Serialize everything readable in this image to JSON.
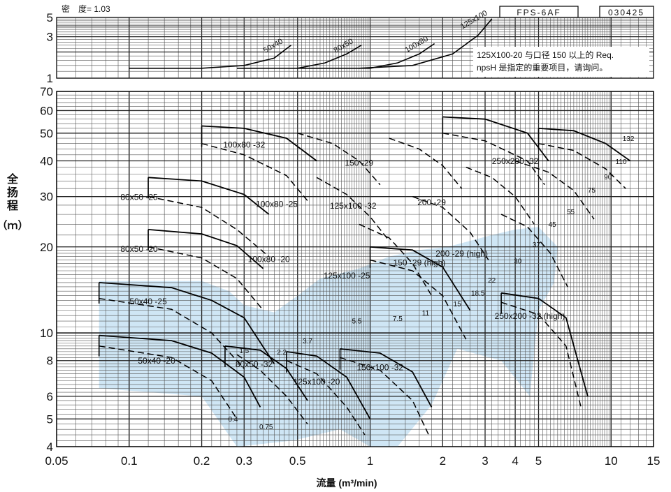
{
  "header": {
    "density_label": "密　度= 1.03",
    "model": "FPS-6AF",
    "code": "030425"
  },
  "axes": {
    "ylabel_lines": [
      "全",
      "扬",
      "程"
    ],
    "yunit": "（ｍ）",
    "xlabel": "流量 (m³/min)"
  },
  "npsh_note": {
    "lines": [
      "125X100-20 与口径 150 以上的 Req.",
      "npsH 是指定的重要项目，请询问。"
    ]
  },
  "chart_data": [
    {
      "type": "line",
      "title": "",
      "ylabel": "",
      "xscale": "log",
      "yscale": "log",
      "xlim": [
        0.05,
        15
      ],
      "ylim": [
        1,
        5
      ],
      "x_ticks": [],
      "y_ticks": [
        "1",
        "3",
        "5"
      ],
      "grid": true,
      "series": [
        {
          "name": "50x40",
          "x": [
            0.1,
            0.2,
            0.3,
            0.4,
            0.47
          ],
          "y": [
            1.3,
            1.3,
            1.4,
            1.7,
            2.4
          ]
        },
        {
          "name": "80x50",
          "x": [
            0.28,
            0.5,
            0.65,
            0.8,
            0.92
          ],
          "y": [
            1.3,
            1.3,
            1.5,
            1.9,
            2.4
          ]
        },
        {
          "name": "100x80",
          "x": [
            0.5,
            1.0,
            1.3,
            1.6,
            1.85
          ],
          "y": [
            1.3,
            1.3,
            1.5,
            1.9,
            2.5
          ]
        },
        {
          "name": "125x100",
          "x": [
            0.9,
            1.5,
            2.2,
            2.8,
            3.2
          ],
          "y": [
            1.3,
            1.4,
            1.9,
            3.1,
            4.8
          ]
        }
      ]
    },
    {
      "type": "line",
      "title": "",
      "xlabel": "流量 (m³/min)",
      "ylabel": "全扬程（ｍ）",
      "xscale": "log",
      "yscale": "log",
      "xlim": [
        0.05,
        15
      ],
      "ylim": [
        4,
        70
      ],
      "x_ticks": [
        "0.05",
        "0.1",
        "0.2",
        "0.3",
        "0.5",
        "1",
        "2",
        "3",
        "4",
        "5",
        "10",
        "15"
      ],
      "y_ticks": [
        "4",
        "5",
        "6",
        "8",
        "10",
        "20",
        "30",
        "40",
        "50",
        "60",
        "70"
      ],
      "grid": true,
      "pump_models": [
        "50x40 -20",
        "50x40 -25",
        "80x50 -20",
        "80x50 -25",
        "80x50 -32",
        "100x80 -20",
        "100x80 -25",
        "100x80 -32",
        "125x100 -20",
        "125x100 -25",
        "125x100 -32",
        "150 -29",
        "150x100 -32",
        "150 -29 (high)",
        "200 -29",
        "200 -29 (high)",
        "250x200 -32",
        "250x200 -32 (high)"
      ],
      "power_labels_kw": [
        "0.4",
        "0.75",
        "1.5",
        "2.2",
        "3.7",
        "5.5",
        "7.5",
        "11",
        "15",
        "18.5",
        "22",
        "30",
        "37",
        "45",
        "55",
        "75",
        "90",
        "110",
        "132"
      ],
      "series": [
        {
          "name": "50x40 -20",
          "x": [
            0.075,
            0.15,
            0.22,
            0.3,
            0.35
          ],
          "y": [
            9.8,
            9.4,
            8.5,
            7.0,
            5.5
          ]
        },
        {
          "name": "50x40 -25",
          "x": [
            0.075,
            0.15,
            0.22,
            0.3,
            0.4
          ],
          "y": [
            15.0,
            14.4,
            13.0,
            11.3,
            7.8
          ]
        },
        {
          "name": "50x40 -20 (high)",
          "x": [
            0.12,
            0.2,
            0.28,
            0.36
          ],
          "y": [
            23.0,
            22.2,
            20.2,
            16.8
          ]
        },
        {
          "name": "50x40 -25 (high)",
          "x": [
            0.12,
            0.2,
            0.3,
            0.38
          ],
          "y": [
            35.0,
            34.0,
            30.5,
            26.0
          ]
        },
        {
          "name": "80x50 -20",
          "x": [
            0.25,
            0.35,
            0.45,
            0.55
          ],
          "y": [
            9.0,
            8.7,
            7.5,
            5.8
          ]
        },
        {
          "name": "80x50 -32",
          "x": [
            0.2,
            0.3,
            0.45,
            0.6
          ],
          "y": [
            53.0,
            52.0,
            48.0,
            40.0
          ]
        },
        {
          "name": "100x80 -20",
          "x": [
            0.45,
            0.6,
            0.8,
            1.0
          ],
          "y": [
            8.6,
            8.3,
            7.0,
            5.0
          ]
        },
        {
          "name": "125x100 -20",
          "x": [
            0.75,
            1.1,
            1.5,
            1.8
          ],
          "y": [
            8.8,
            8.5,
            7.3,
            5.5
          ]
        },
        {
          "name": "125x100 -25",
          "x": [
            1.0,
            1.5,
            2.0,
            2.6
          ],
          "y": [
            20.0,
            19.5,
            17.0,
            12.0
          ]
        },
        {
          "name": "150x100 -32",
          "x": [
            2.0,
            3.0,
            4.5,
            5.5
          ],
          "y": [
            57.0,
            56.0,
            50.0,
            40.0
          ]
        },
        {
          "name": "200 -29",
          "x": [
            3.5,
            5.0,
            6.5,
            8.0
          ],
          "y": [
            13.8,
            13.2,
            11.3,
            6.0
          ]
        },
        {
          "name": "250x200 -32",
          "x": [
            5.0,
            7.0,
            9.5,
            12.0
          ],
          "y": [
            52.0,
            51.0,
            46.0,
            40.0
          ]
        }
      ]
    }
  ]
}
